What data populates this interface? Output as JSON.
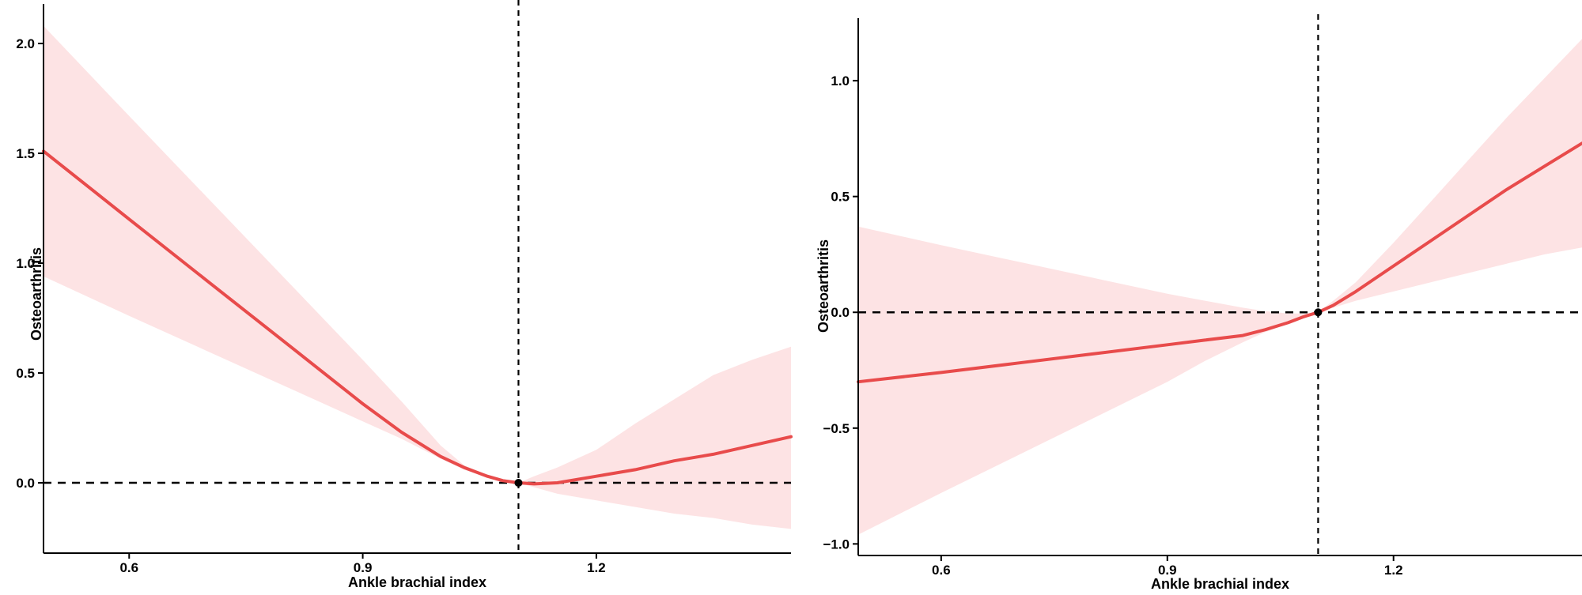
{
  "chart_data": [
    {
      "type": "line",
      "xlabel": "Ankle brachial index",
      "ylabel": "Osteoarthritis",
      "xlim": [
        0.49,
        1.45
      ],
      "ylim": [
        -0.32,
        2.18
      ],
      "xticks": [
        0.6,
        0.9,
        1.2
      ],
      "xtick_labels": [
        "0.6",
        "0.9",
        "1.2"
      ],
      "yticks": [
        0.0,
        0.5,
        1.0,
        1.5,
        2.0
      ],
      "ytick_labels": [
        "0.0",
        "0.5",
        "1.0",
        "1.5",
        "2.0"
      ],
      "reference_x": 1.1,
      "reference_y": 0,
      "reference_point": {
        "x": 1.1,
        "y": 0.0
      },
      "grid": false,
      "colors": {
        "line": "#E84B4B",
        "band": "#FDE3E4",
        "reference": "#000000"
      },
      "series": [
        {
          "x": [
            0.49,
            0.6,
            0.7,
            0.8,
            0.9,
            0.95,
            1.0,
            1.03,
            1.06,
            1.08,
            1.1,
            1.12,
            1.15,
            1.2,
            1.25,
            1.3,
            1.35,
            1.4,
            1.45
          ],
          "y": [
            1.51,
            1.2,
            0.92,
            0.64,
            0.36,
            0.23,
            0.12,
            0.07,
            0.03,
            0.01,
            0.0,
            -0.005,
            0.0,
            0.03,
            0.06,
            0.1,
            0.13,
            0.17,
            0.21
          ],
          "lower": [
            0.94,
            0.76,
            0.6,
            0.44,
            0.28,
            0.2,
            0.11,
            0.06,
            0.025,
            0.01,
            0.0,
            -0.02,
            -0.05,
            -0.08,
            -0.11,
            -0.14,
            -0.16,
            -0.19,
            -0.21
          ],
          "upper": [
            2.08,
            1.67,
            1.3,
            0.93,
            0.56,
            0.37,
            0.17,
            0.08,
            0.035,
            0.01,
            0.0,
            0.03,
            0.07,
            0.15,
            0.27,
            0.38,
            0.49,
            0.56,
            0.62
          ]
        }
      ]
    },
    {
      "type": "line",
      "xlabel": "Ankle brachial index",
      "ylabel": "Osteoarthritis",
      "xlim": [
        0.49,
        1.45
      ],
      "ylim": [
        -1.05,
        1.27
      ],
      "xticks": [
        0.6,
        0.9,
        1.2
      ],
      "xtick_labels": [
        "0.6",
        "0.9",
        "1.2"
      ],
      "yticks": [
        -1.0,
        -0.5,
        0.0,
        0.5,
        1.0
      ],
      "ytick_labels": [
        "−1.0",
        "−0.5",
        "0.0",
        "0.5",
        "1.0"
      ],
      "reference_x": 1.1,
      "reference_y": 0,
      "reference_point": {
        "x": 1.1,
        "y": 0.0
      },
      "grid": false,
      "colors": {
        "line": "#E84B4B",
        "band": "#FDE3E4",
        "reference": "#000000"
      },
      "series": [
        {
          "x": [
            0.49,
            0.6,
            0.7,
            0.8,
            0.9,
            0.95,
            1.0,
            1.03,
            1.06,
            1.08,
            1.1,
            1.12,
            1.15,
            1.2,
            1.25,
            1.3,
            1.35,
            1.4,
            1.45
          ],
          "y": [
            -0.3,
            -0.26,
            -0.22,
            -0.18,
            -0.14,
            -0.12,
            -0.1,
            -0.075,
            -0.045,
            -0.02,
            0.0,
            0.03,
            0.09,
            0.2,
            0.31,
            0.42,
            0.53,
            0.63,
            0.73
          ],
          "lower": [
            -0.96,
            -0.78,
            -0.62,
            -0.46,
            -0.3,
            -0.21,
            -0.13,
            -0.085,
            -0.05,
            -0.025,
            0.0,
            0.02,
            0.05,
            0.09,
            0.13,
            0.17,
            0.21,
            0.25,
            0.28
          ],
          "upper": [
            0.37,
            0.29,
            0.22,
            0.15,
            0.08,
            0.05,
            0.02,
            0.005,
            -0.005,
            -0.005,
            0.0,
            0.05,
            0.13,
            0.3,
            0.48,
            0.66,
            0.84,
            1.01,
            1.18
          ]
        }
      ]
    }
  ]
}
